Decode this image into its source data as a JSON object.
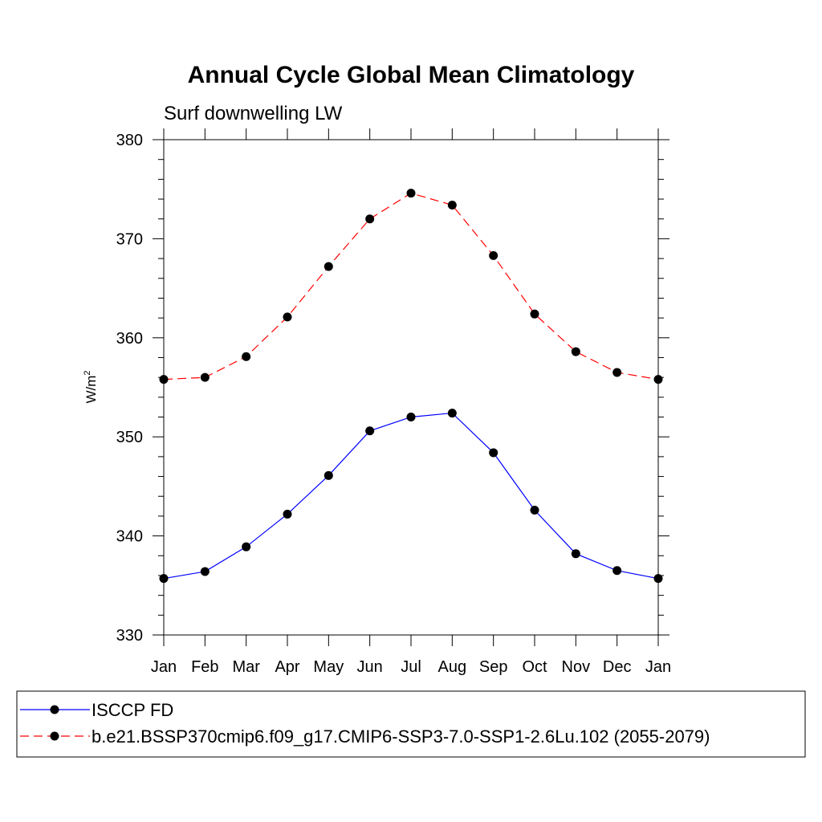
{
  "chart_data": {
    "type": "line",
    "title": "Annual Cycle Global Mean Climatology",
    "subtitle": "Surf downwelling LW",
    "ylabel": "W/m",
    "ylabel_superscript": "2",
    "xlabel": "",
    "categories": [
      "Jan",
      "Feb",
      "Mar",
      "Apr",
      "May",
      "Jun",
      "Jul",
      "Aug",
      "Sep",
      "Oct",
      "Nov",
      "Dec",
      "Jan"
    ],
    "ylim": [
      330,
      380
    ],
    "yticks": [
      330,
      340,
      350,
      360,
      370,
      380
    ],
    "ytick_labels": [
      "330",
      "340",
      "350",
      "360",
      "370",
      "380"
    ],
    "grid": false,
    "legend_position": "bottom",
    "series": [
      {
        "name": "ISCCP FD",
        "color": "#0000ff",
        "line_style": "solid",
        "marker": "filled-circle",
        "values": [
          335.7,
          336.4,
          338.9,
          342.2,
          346.1,
          350.6,
          352.0,
          352.4,
          348.4,
          342.6,
          338.2,
          336.5,
          335.7
        ]
      },
      {
        "name": "b.e21.BSSP370cmip6.f09_g17.CMIP6-SSP3-7.0-SSP1-2.6Lu.102 (2055-2079)",
        "color": "#ff0000",
        "line_style": "dashed",
        "marker": "filled-circle",
        "values": [
          355.8,
          356.0,
          358.1,
          362.1,
          367.2,
          372.0,
          374.6,
          373.4,
          368.3,
          362.4,
          358.6,
          356.5,
          355.8
        ]
      }
    ]
  }
}
